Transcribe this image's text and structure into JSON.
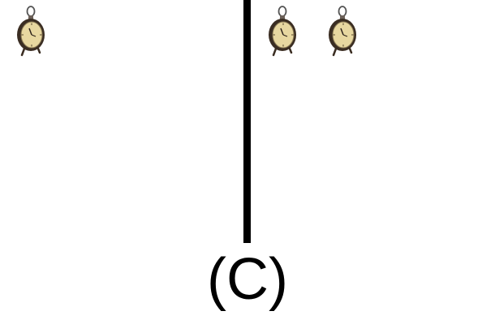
{
  "option_label": "(C)",
  "left_group": {
    "clocks": [
      {
        "icon": "alarm-clock-icon"
      }
    ]
  },
  "right_group": {
    "clocks": [
      {
        "icon": "alarm-clock-icon"
      },
      {
        "icon": "alarm-clock-icon"
      }
    ]
  },
  "colors": {
    "background": "#ffffff",
    "divider": "#000000",
    "clock_face": "#e7d7a0",
    "clock_case": "#3a2d22"
  }
}
